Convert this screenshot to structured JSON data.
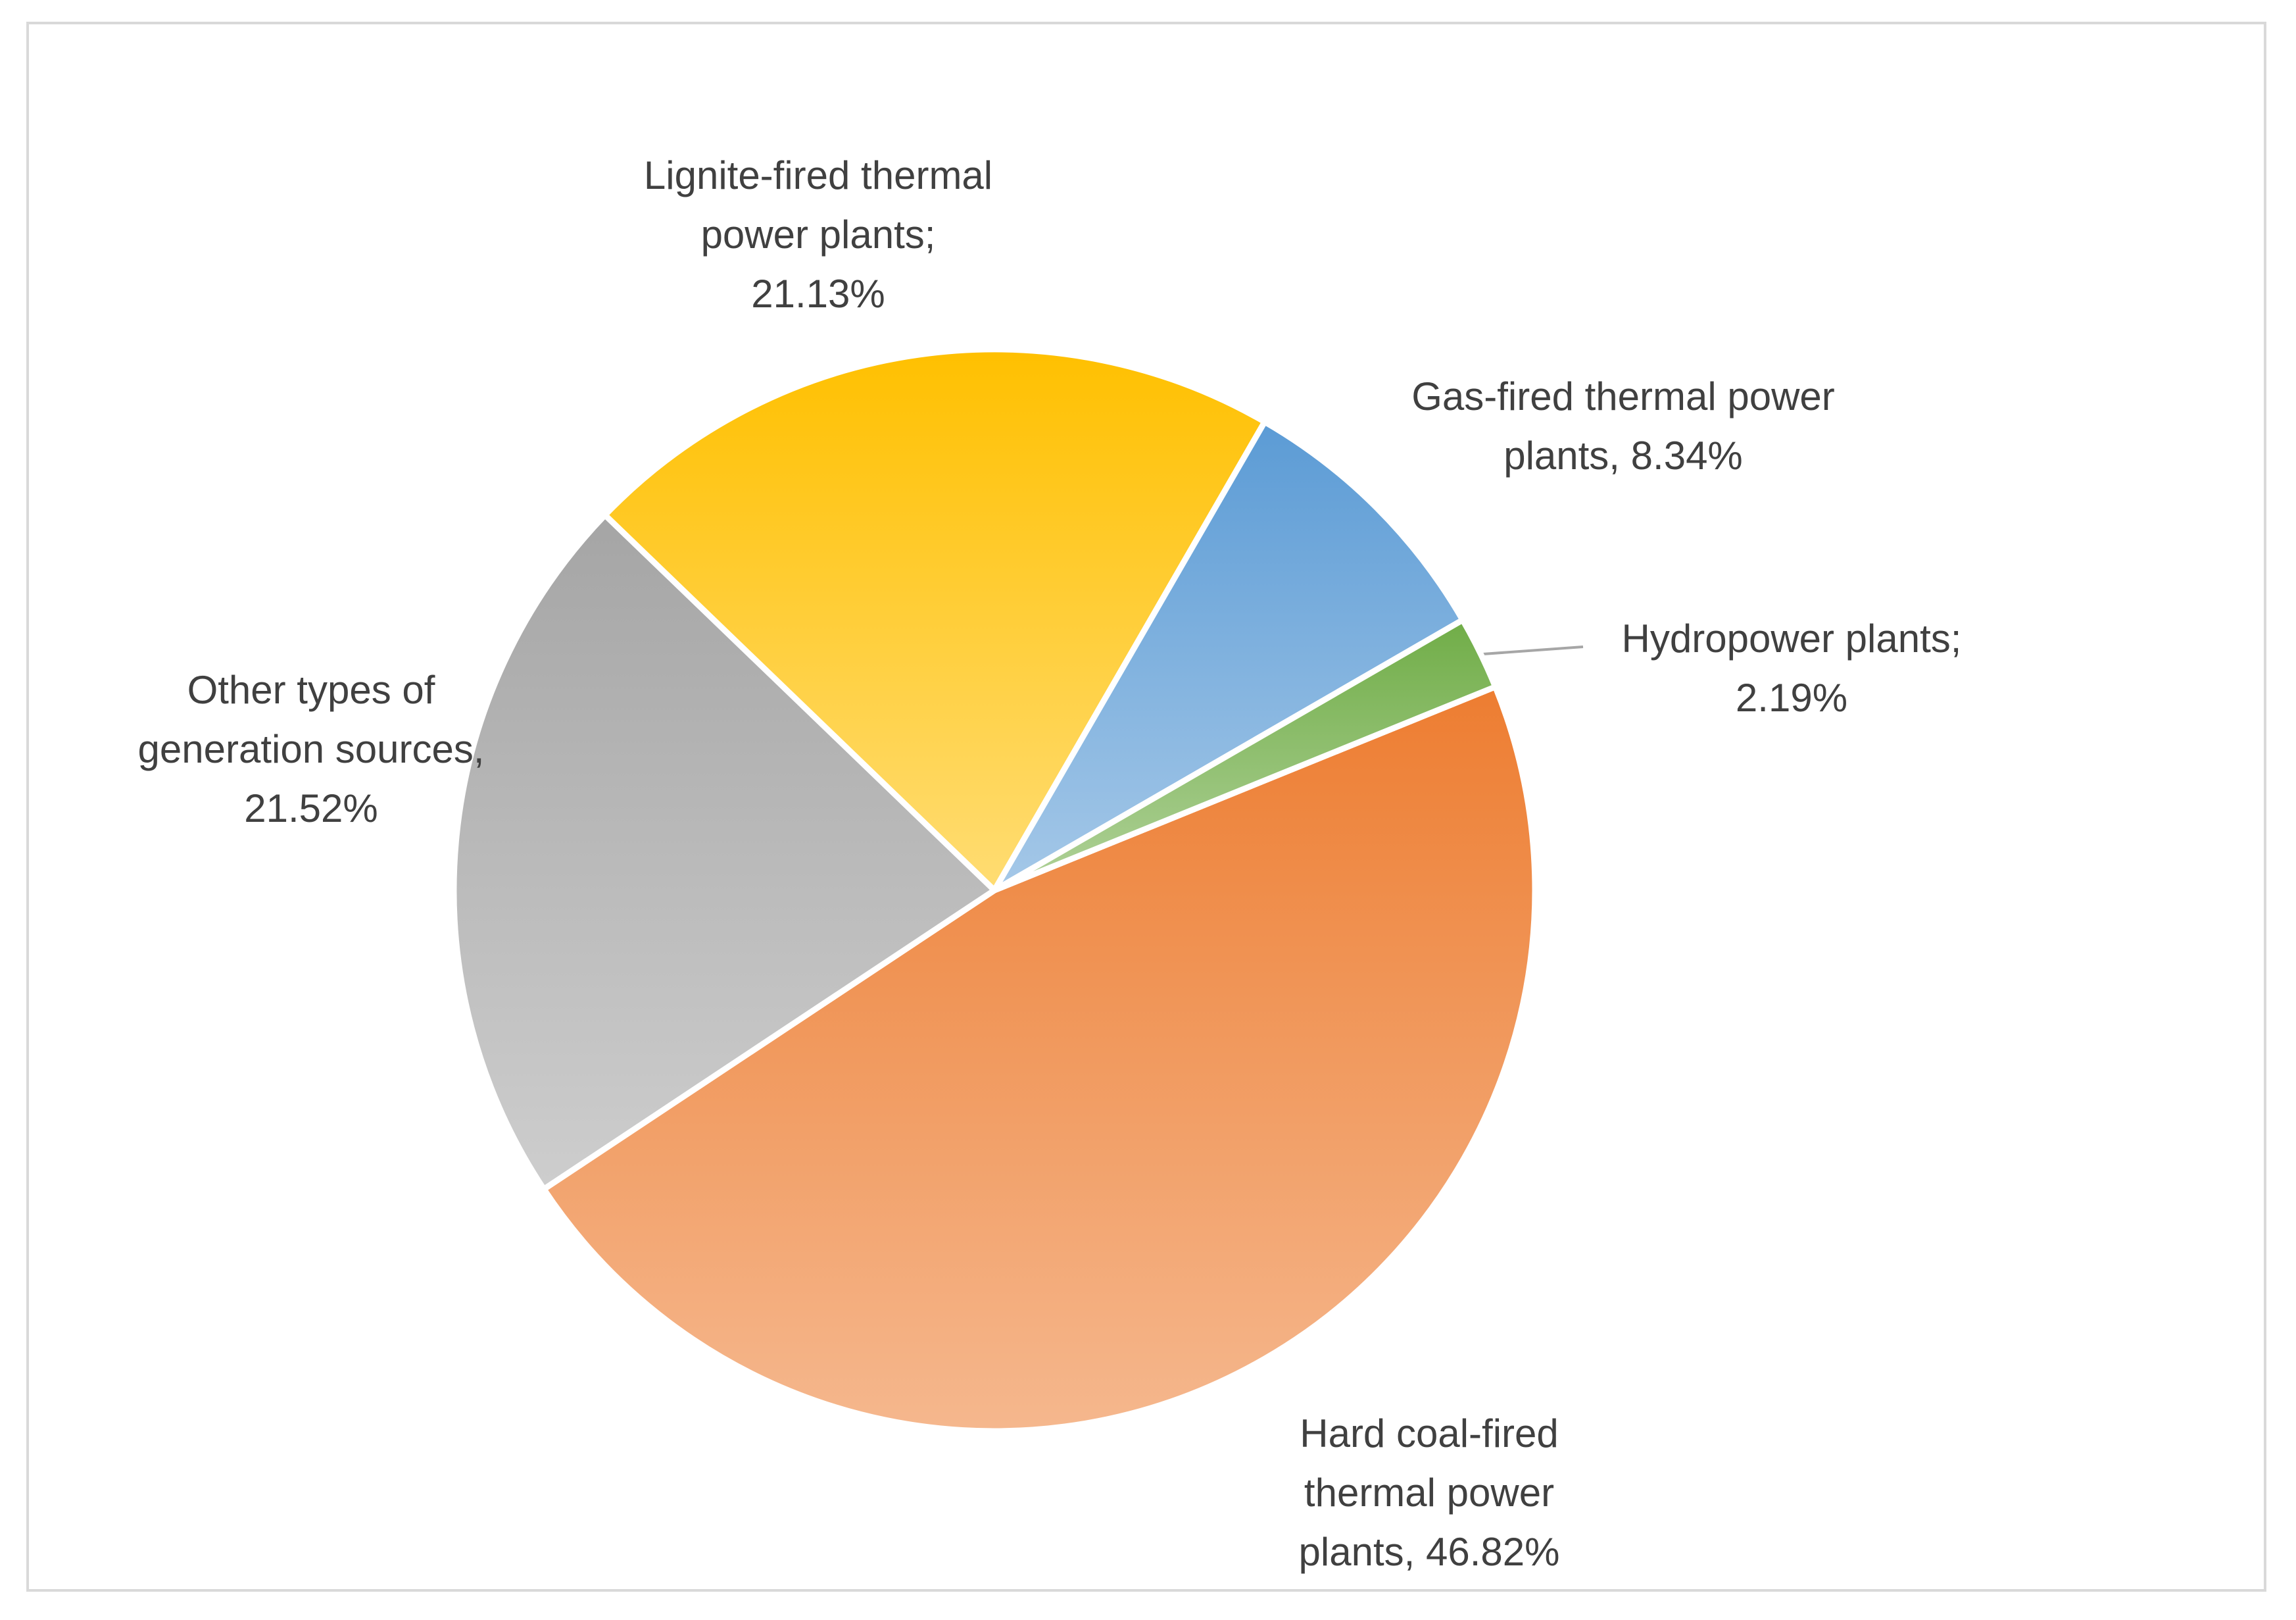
{
  "chart_data": {
    "type": "pie",
    "categories": [
      "Hard coal-fired thermal power plants,",
      "Other types of generation sources,",
      "Lignite-fired thermal power plants;",
      "Gas-fired thermal power plants,",
      "Hydropower plants;"
    ],
    "values": [
      46.82,
      21.52,
      21.13,
      8.34,
      2.19
    ],
    "value_labels": [
      "46.82%",
      "21.52%",
      "21.13%",
      "8.34%",
      "2.19%"
    ],
    "colors": [
      "#ed7d31",
      "#a5a5a5",
      "#ffc000",
      "#5b9bd5",
      "#70ad47"
    ]
  }
}
